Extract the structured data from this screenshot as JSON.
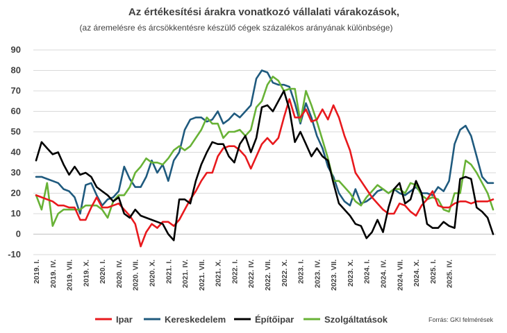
{
  "chart_data": {
    "type": "line",
    "title": "Az értékesítési árakra vonatkozó vállalati várakozások,",
    "subtitle": "(az áremelésre  és árcsökkentésre  készülő  cégek  százalékos  arányának  különbsége)",
    "source": "Forrás: GKI felmérések",
    "ylim": [
      -10,
      90
    ],
    "yticks": [
      -10,
      0,
      10,
      20,
      30,
      40,
      50,
      60,
      70,
      80,
      90
    ],
    "xtick_labels": [
      "2019. I.",
      "2019. IV.",
      "2019. VII.",
      "2019. X.",
      "2020. I.",
      "2020. IV.",
      "2020. VII.",
      "2020. X.",
      "2021. I.",
      "2021. IV.",
      "2021. VII.",
      "2021. X.",
      "2022. I.",
      "2022. IV.",
      "2022. VII.",
      "2022. X.",
      "2023. I.",
      "2023. IV.",
      "2023. VII.",
      "2023. X.",
      "2024. I.",
      "2024. IV.",
      "2024. VII.",
      "2024. X.",
      "2025. I.",
      "2025. IV."
    ],
    "months": 84,
    "legend_position": "bottom",
    "grid": true,
    "colors": {
      "Ipar": "#e8191d",
      "Kereskedelem": "#1f5a7e",
      "Építőipar": "#000000",
      "Szolgáltatások": "#68b236"
    },
    "series": [
      {
        "name": "Ipar",
        "values": [
          19,
          18,
          17,
          16,
          14,
          14,
          13,
          13,
          7,
          7,
          13,
          18,
          13,
          13,
          14,
          15,
          12,
          9,
          5,
          -6,
          1,
          5,
          3,
          6,
          6,
          4,
          7,
          12,
          17,
          21,
          26,
          30,
          30,
          38,
          42,
          43,
          43,
          41,
          38,
          32,
          38,
          44,
          47,
          44,
          47,
          57,
          66,
          57,
          57,
          61,
          55,
          56,
          61,
          56,
          63,
          57,
          48,
          41,
          30,
          26,
          22,
          18,
          15,
          12,
          10,
          10,
          15,
          14,
          11,
          9,
          14,
          17,
          21,
          14,
          13,
          13,
          15,
          16,
          16,
          15,
          16,
          16,
          16,
          17
        ]
      },
      {
        "name": "Kereskedelem",
        "values": [
          28,
          28,
          27,
          26,
          25,
          22,
          21,
          18,
          10,
          24,
          25,
          19,
          14,
          17,
          18,
          21,
          33,
          27,
          23,
          23,
          28,
          36,
          30,
          34,
          26,
          36,
          40,
          51,
          56,
          57,
          57,
          55,
          56,
          60,
          54,
          56,
          59,
          57,
          60,
          63,
          76,
          80,
          79,
          74,
          73,
          73,
          72,
          64,
          54,
          64,
          57,
          48,
          42,
          33,
          28,
          20,
          16,
          14,
          22,
          15,
          16,
          18,
          21,
          22,
          20,
          22,
          20,
          19,
          21,
          23,
          20,
          20,
          19,
          23,
          21,
          26,
          44,
          51,
          53,
          48,
          38,
          28,
          25,
          25
        ]
      },
      {
        "name": "Építőipar",
        "values": [
          36,
          45,
          42,
          39,
          40,
          34,
          29,
          33,
          29,
          30,
          28,
          23,
          21,
          19,
          16,
          18,
          10,
          8,
          12,
          9,
          8,
          7,
          6,
          5,
          0,
          -3,
          17,
          17,
          15,
          26,
          34,
          40,
          45,
          44,
          44,
          38,
          35,
          44,
          48,
          40,
          47,
          62,
          63,
          60,
          65,
          70,
          61,
          45,
          50,
          44,
          38,
          42,
          38,
          36,
          25,
          15,
          12,
          9,
          5,
          4,
          -2,
          1,
          7,
          1,
          13,
          22,
          25,
          15,
          17,
          26,
          20,
          5,
          3,
          3,
          6,
          4,
          3,
          27,
          28,
          27,
          13,
          11,
          8,
          0
        ]
      },
      {
        "name": "Szolgáltatások",
        "values": [
          19,
          12,
          25,
          4,
          10,
          12,
          12,
          12,
          12,
          14,
          14,
          14,
          12,
          8,
          16,
          19,
          19,
          23,
          30,
          33,
          37,
          35,
          35,
          34,
          37,
          41,
          43,
          41,
          43,
          47,
          51,
          57,
          54,
          54,
          47,
          50,
          50,
          51,
          48,
          51,
          62,
          65,
          73,
          77,
          75,
          70,
          71,
          71,
          55,
          70,
          63,
          55,
          46,
          37,
          26,
          26,
          23,
          20,
          16,
          14,
          18,
          21,
          24,
          22,
          20,
          22,
          22,
          20,
          25,
          24,
          19,
          17,
          18,
          17,
          12,
          11,
          20,
          20,
          36,
          34,
          30,
          25,
          20,
          12
        ]
      }
    ]
  }
}
